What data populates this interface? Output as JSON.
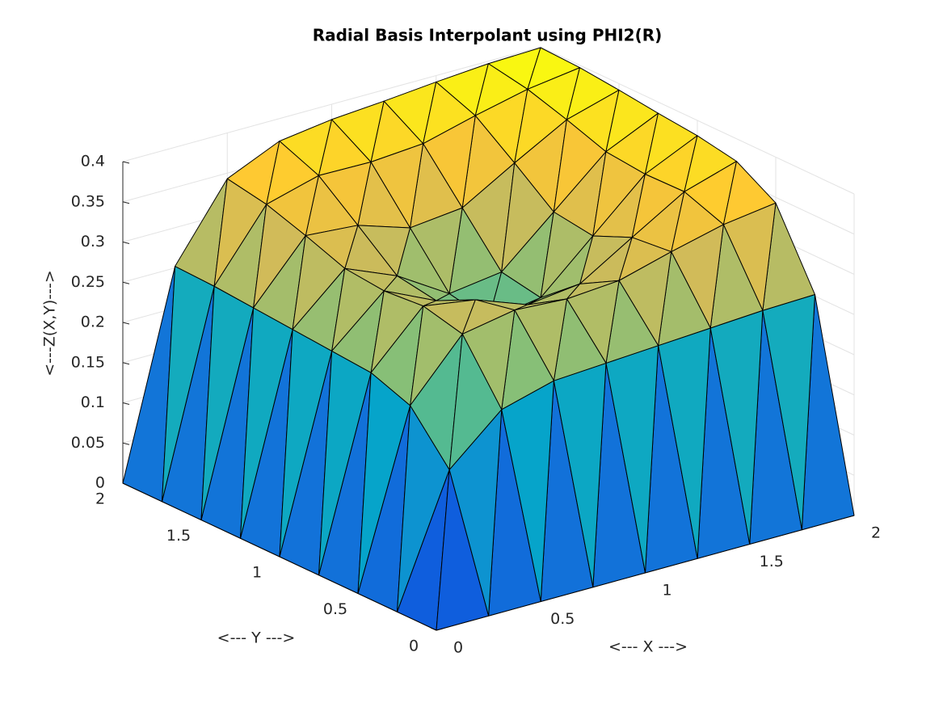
{
  "chart_data": {
    "type": "surface",
    "title": "Radial Basis Interpolant using PHI2(R)",
    "xlabel": "<--- X --->",
    "ylabel": "<--- Y --->",
    "zlabel": "<---Z(X,Y)--->",
    "x": [
      0,
      0.25,
      0.5,
      0.75,
      1,
      1.25,
      1.5,
      1.75,
      2
    ],
    "y": [
      0,
      0.25,
      0.5,
      0.75,
      1,
      1.25,
      1.5,
      1.75,
      2
    ],
    "z": [
      [
        0,
        0,
        0,
        0,
        0,
        0,
        0,
        0,
        0
      ],
      [
        0,
        0.159,
        0.216,
        0.234,
        0.238,
        0.242,
        0.246,
        0.25,
        0.252
      ],
      [
        0,
        0.216,
        0.287,
        0.299,
        0.295,
        0.3,
        0.318,
        0.334,
        0.343
      ],
      [
        0,
        0.234,
        0.299,
        0.289,
        0.265,
        0.273,
        0.313,
        0.352,
        0.372
      ],
      [
        0,
        0.238,
        0.295,
        0.265,
        0.223,
        0.233,
        0.292,
        0.351,
        0.381
      ],
      [
        0,
        0.242,
        0.3,
        0.273,
        0.233,
        0.242,
        0.299,
        0.356,
        0.386
      ],
      [
        0,
        0.246,
        0.318,
        0.313,
        0.292,
        0.299,
        0.337,
        0.373,
        0.392
      ],
      [
        0,
        0.25,
        0.334,
        0.352,
        0.351,
        0.356,
        0.373,
        0.388,
        0.397
      ],
      [
        0,
        0.252,
        0.343,
        0.372,
        0.381,
        0.386,
        0.392,
        0.397,
        0.399
      ]
    ],
    "xlim": [
      0,
      2
    ],
    "ylim": [
      0,
      2
    ],
    "zlim": [
      0,
      0.4
    ],
    "xticks": [
      0,
      0.5,
      1,
      1.5,
      2
    ],
    "yticks": [
      0,
      0.5,
      1,
      1.5,
      2
    ],
    "zticks": [
      0,
      0.05,
      0.1,
      0.15,
      0.2,
      0.25,
      0.3,
      0.35,
      0.4
    ],
    "grid": true,
    "colormap": "parula",
    "edge_color": "#000000"
  }
}
